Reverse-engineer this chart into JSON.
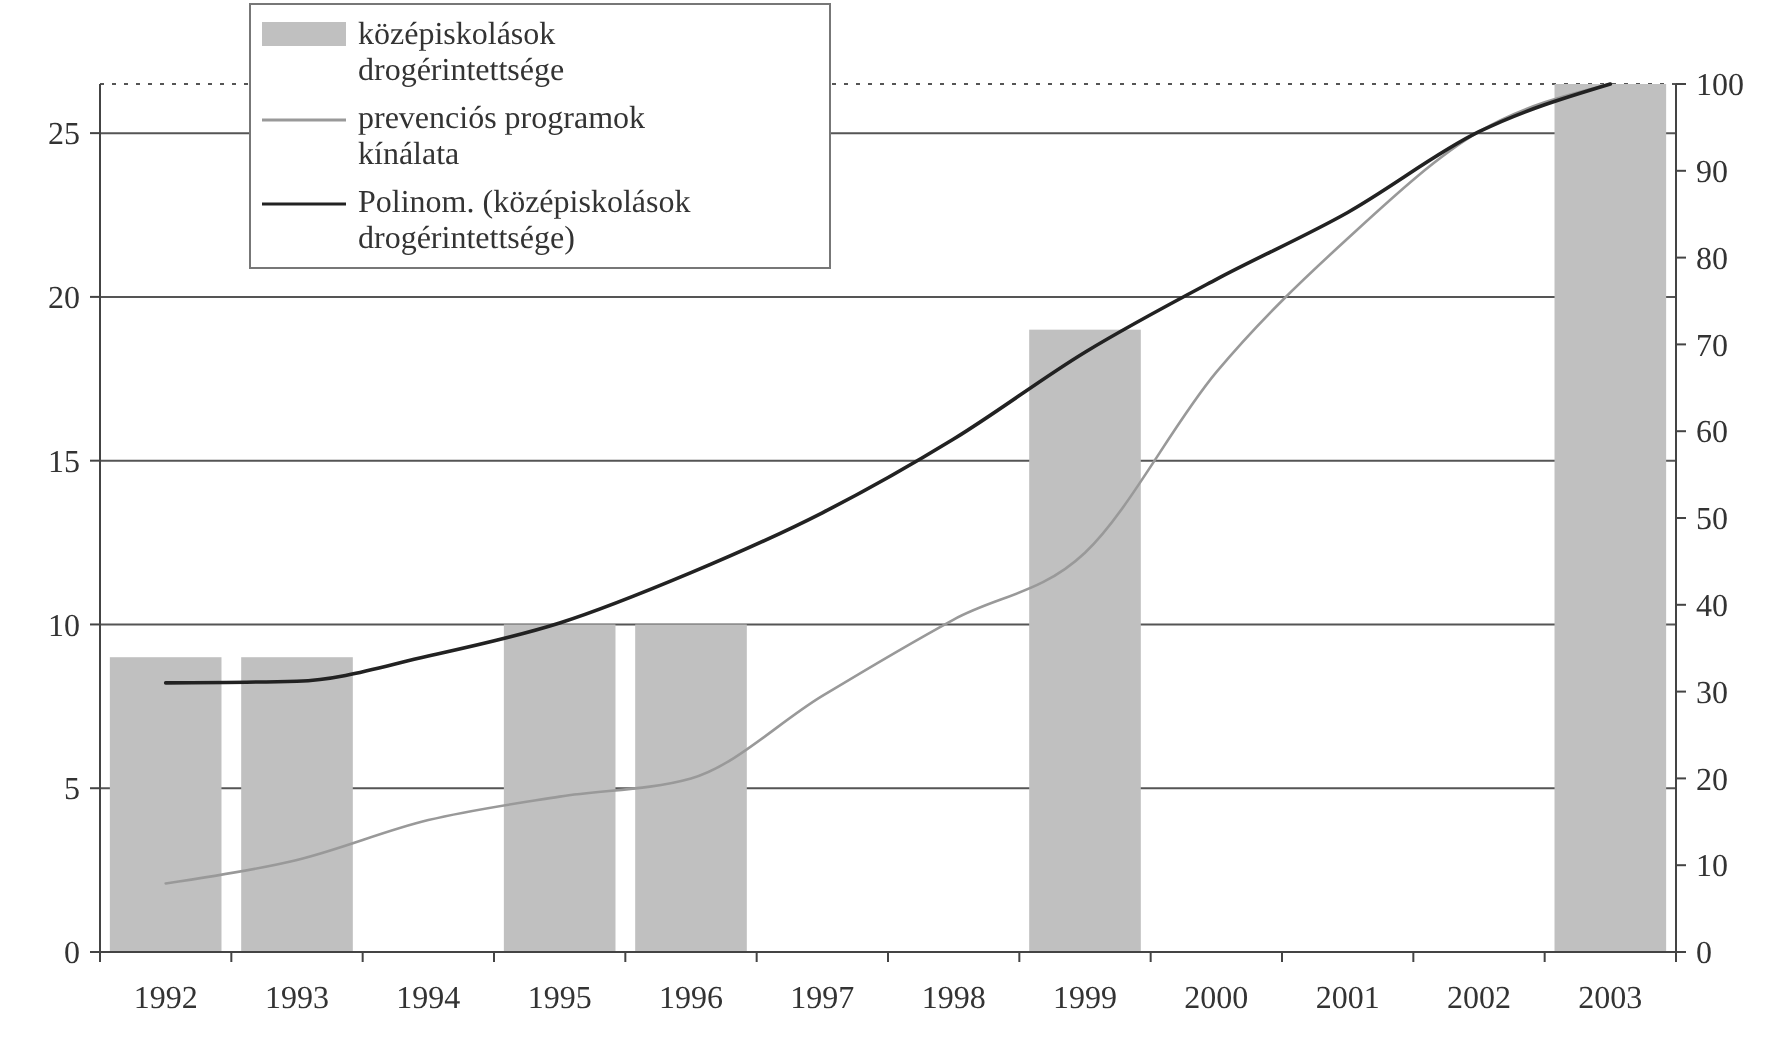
{
  "chart_data": {
    "type": "bar",
    "categories": [
      "1992",
      "1993",
      "1994",
      "1995",
      "1996",
      "1997",
      "1998",
      "1999",
      "2000",
      "2001",
      "2002",
      "2003"
    ],
    "series": [
      {
        "name": "középiskolások drogérintettsége",
        "color": "#c0c0c0",
        "values": [
          9,
          9,
          null,
          10,
          10,
          null,
          null,
          19,
          null,
          null,
          null,
          26.5
        ]
      },
      {
        "name": "prevenciós programok kínálata",
        "type": "line",
        "axis": "y2",
        "color": "#999999",
        "values": [
          7.9,
          10.6,
          15.2,
          17.9,
          20,
          29.5,
          38.3,
          46,
          66.8,
          82.2,
          94.5,
          100
        ]
      },
      {
        "name": "Polinom. (középiskolások drogérintettsége)",
        "type": "line",
        "axis": "y2",
        "color": "#222222",
        "values": [
          31,
          31.2,
          34.1,
          37.9,
          43.7,
          50.6,
          59.1,
          69.1,
          77.5,
          85.2,
          94.5,
          100
        ]
      }
    ],
    "ylim": [
      0,
      26.5
    ],
    "yticks": [
      0,
      5,
      10,
      15,
      20,
      25
    ],
    "y2lim": [
      0,
      100
    ],
    "y2ticks": [
      0,
      10,
      20,
      30,
      40,
      50,
      60,
      70,
      80,
      90,
      100
    ],
    "grid": "y",
    "legend": "top left"
  }
}
